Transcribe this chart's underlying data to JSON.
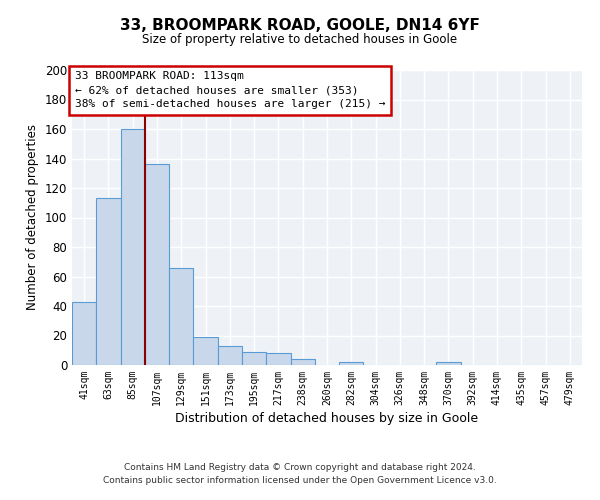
{
  "title1": "33, BROOMPARK ROAD, GOOLE, DN14 6YF",
  "title2": "Size of property relative to detached houses in Goole",
  "xlabel": "Distribution of detached houses by size in Goole",
  "ylabel": "Number of detached properties",
  "bar_labels": [
    "41sqm",
    "63sqm",
    "85sqm",
    "107sqm",
    "129sqm",
    "151sqm",
    "173sqm",
    "195sqm",
    "217sqm",
    "238sqm",
    "260sqm",
    "282sqm",
    "304sqm",
    "326sqm",
    "348sqm",
    "370sqm",
    "392sqm",
    "414sqm",
    "435sqm",
    "457sqm",
    "479sqm"
  ],
  "bar_values": [
    43,
    113,
    160,
    136,
    66,
    19,
    13,
    9,
    8,
    4,
    0,
    2,
    0,
    0,
    0,
    2,
    0,
    0,
    0,
    0,
    0
  ],
  "bar_color": "#c8d8ea",
  "bar_edge_color": "#5b9bd5",
  "bg_color": "#eef2f7",
  "grid_color": "#ffffff",
  "ylim": [
    0,
    200
  ],
  "yticks": [
    0,
    20,
    40,
    60,
    80,
    100,
    120,
    140,
    160,
    180,
    200
  ],
  "vline_x": 2.5,
  "vline_color": "#8b0000",
  "annotation_title": "33 BROOMPARK ROAD: 113sqm",
  "annotation_line1": "← 62% of detached houses are smaller (353)",
  "annotation_line2": "38% of semi-detached houses are larger (215) →",
  "annotation_box_color": "#ffffff",
  "annotation_box_edge": "#cc0000",
  "footer1": "Contains HM Land Registry data © Crown copyright and database right 2024.",
  "footer2": "Contains public sector information licensed under the Open Government Licence v3.0."
}
